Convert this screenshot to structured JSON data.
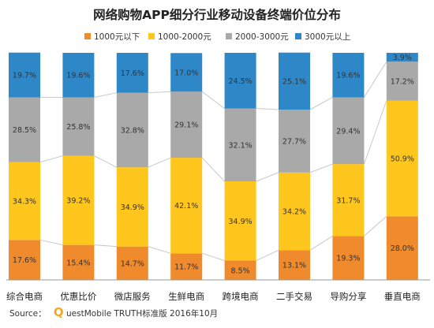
{
  "chart_data": {
    "type": "bar",
    "stacked": true,
    "percent_stacked": true,
    "title": "网络购物APP细分行业移动设备终端价位分布",
    "categories": [
      "综合电商",
      "优惠比价",
      "微店服务",
      "生鲜电商",
      "跨境电商",
      "二手交易",
      "导购分享",
      "垂直电商"
    ],
    "series": [
      {
        "name": "1000元以下",
        "color": "#ef8a2d",
        "values": [
          17.6,
          15.4,
          14.7,
          11.7,
          8.5,
          13.1,
          19.3,
          28.0
        ],
        "labels": [
          "17.6%",
          "15.4%",
          "14.7%",
          "11.7%",
          "8.5%",
          "13.1%",
          "19.3%",
          "28.0%"
        ]
      },
      {
        "name": "1000-2000元",
        "color": "#ffc61e",
        "values": [
          34.3,
          39.2,
          34.9,
          42.1,
          34.9,
          34.2,
          31.7,
          50.9
        ],
        "labels": [
          "34.3%",
          "39.2%",
          "34.9%",
          "42.1%",
          "34.9%",
          "34.2%",
          "31.7%",
          "50.9%"
        ]
      },
      {
        "name": "2000-3000元",
        "color": "#a9a9a9",
        "values": [
          28.5,
          25.8,
          32.8,
          29.1,
          32.1,
          27.7,
          29.4,
          17.2
        ],
        "labels": [
          "28.5%",
          "25.8%",
          "32.8%",
          "29.1%",
          "32.1%",
          "27.7%",
          "29.4%",
          "17.2%"
        ]
      },
      {
        "name": "3000元以上",
        "color": "#2e88c8",
        "values": [
          19.7,
          19.6,
          17.6,
          17.0,
          24.5,
          25.1,
          19.6,
          3.9
        ],
        "labels": [
          "19.7%",
          "19.6%",
          "17.6%",
          "17.0%",
          "24.5%",
          "25.1%",
          "19.6%",
          "3.9%"
        ]
      }
    ],
    "ylim": [
      0,
      100
    ],
    "legend_position": "top",
    "grid": false,
    "series_connector_lines": true
  },
  "source": {
    "prefix": "Source：",
    "brand_initial": "Q",
    "brand_rest": "uestMobile TRUTH标准版 2016年10月",
    "brand_color": "#f5a623"
  }
}
